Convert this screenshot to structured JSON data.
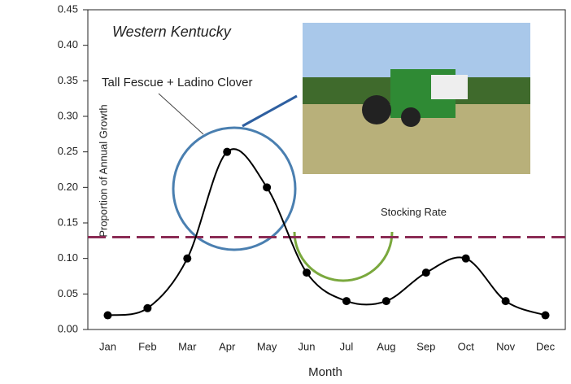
{
  "chart_data": {
    "type": "line",
    "title": "Western Kentucky",
    "annotation": "Tall Fescue + Ladino Clover",
    "x_label": "Month",
    "y_label": "Proportion of Annual Growth",
    "categories": [
      "Jan",
      "Feb",
      "Mar",
      "Apr",
      "May",
      "Jun",
      "Jul",
      "Aug",
      "Sep",
      "Oct",
      "Nov",
      "Dec"
    ],
    "values": [
      0.02,
      0.03,
      0.1,
      0.25,
      0.2,
      0.08,
      0.04,
      0.04,
      0.08,
      0.1,
      0.04,
      0.02
    ],
    "color": "#000000",
    "ylim": [
      0,
      0.45
    ],
    "yticks": [
      {
        "value": 0,
        "label": "0.00"
      },
      {
        "value": 0.05,
        "label": "0.05"
      },
      {
        "value": 0.1,
        "label": "0.10"
      },
      {
        "value": 0.15,
        "label": "0.15"
      },
      {
        "value": 0.2,
        "label": "0.20"
      },
      {
        "value": 0.25,
        "label": "0.25"
      },
      {
        "value": 0.3,
        "label": "0.30"
      },
      {
        "value": 0.35,
        "label": "0.35"
      },
      {
        "value": 0.4,
        "label": "0.40"
      },
      {
        "value": 0.45,
        "label": "0.45"
      }
    ],
    "stocking_rate": {
      "label": "Stocking Rate",
      "value": 0.13,
      "color": "#8b2c55"
    }
  }
}
